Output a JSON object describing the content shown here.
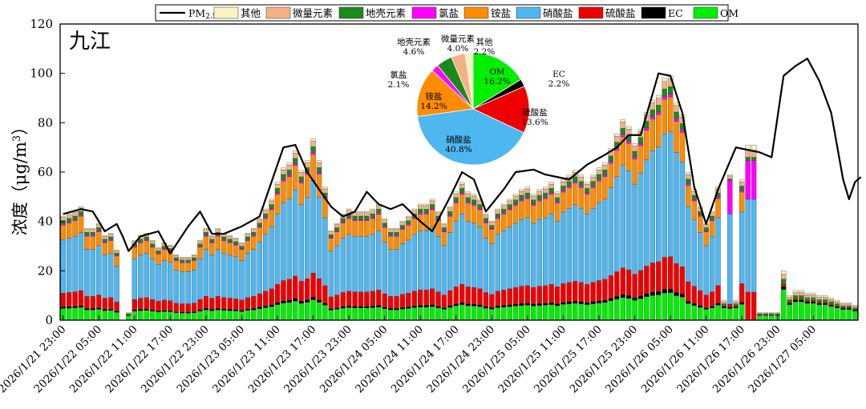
{
  "chart_data": {
    "type": "bar",
    "stacked": true,
    "station_label": "九江",
    "ylabel_prefix": "浓度（μg/m",
    "ylabel_sup": "3",
    "ylabel_suffix": "）",
    "ylim": [
      0,
      120
    ],
    "yticks": [
      0,
      20,
      40,
      60,
      80,
      100,
      120
    ],
    "grid": false,
    "legend_position": "top",
    "x_tick_labels": [
      "2026/1/21 23:00",
      "2026/1/22 05:00",
      "2026/1/22 11:00",
      "2026/1/22 17:00",
      "2026/1/22 23:00",
      "2026/1/23 05:00",
      "2026/1/23 11:00",
      "2026/1/23 17:00",
      "2026/1/23 23:00",
      "2026/1/24 05:00",
      "2026/1/24 11:00",
      "2026/1/24 17:00",
      "2026/1/24 23:00",
      "2026/1/25 05:00",
      "2026/1/25 11:00",
      "2026/1/25 17:00",
      "2026/1/25 23:00",
      "2026/1/26 05:00",
      "2026/1/26 11:00",
      "2026/1/26 17:00",
      "2026/1/26 23:00",
      "2026/1/27 05:00"
    ],
    "n_hours": 134,
    "components": [
      {
        "key": "other",
        "name": "其他",
        "color": "#FBF3C3"
      },
      {
        "key": "crustal",
        "name": "微量元素",
        "color": "#F4B183"
      },
      {
        "key": "earth",
        "name": "地壳元素",
        "color": "#1B8A1B"
      },
      {
        "key": "chloride",
        "name": "氯盐",
        "color": "#FF00FF"
      },
      {
        "key": "ammonium",
        "name": "铵盐",
        "color": "#FF8C00"
      },
      {
        "key": "nitrate",
        "name": "硝酸盐",
        "color": "#4FB7F0"
      },
      {
        "key": "sulfate",
        "name": "硫酸盐",
        "color": "#EE0000"
      },
      {
        "key": "ec",
        "name": "EC",
        "color": "#000000"
      },
      {
        "key": "om",
        "name": "OM",
        "color": "#00EE00"
      }
    ],
    "legend_order": [
      "PM2.5",
      "other",
      "crustal",
      "earth",
      "chloride",
      "ammonium",
      "nitrate",
      "sulfate",
      "ec",
      "om"
    ],
    "pm25_name_main": "PM",
    "pm25_name_sub": "2.5",
    "pm25_color": "#000000",
    "bars": [
      {
        "hour": 0,
        "total": 43
      },
      {
        "hour": 1,
        "total": 44
      },
      {
        "hour": 2,
        "total": 45
      },
      {
        "hour": 3,
        "total": 47
      },
      {
        "hour": 4,
        "total": 38
      },
      {
        "hour": 5,
        "total": 38
      },
      {
        "hour": 6,
        "total": 40
      },
      {
        "hour": 7,
        "total": 35
      },
      {
        "hour": 8,
        "total": 36
      },
      {
        "hour": 9,
        "total": 29
      },
      {
        "hour": 11,
        "total": 3
      },
      {
        "hour": 12,
        "total": 33
      },
      {
        "hour": 13,
        "total": 35
      },
      {
        "hour": 14,
        "total": 36
      },
      {
        "hour": 15,
        "total": 33
      },
      {
        "hour": 16,
        "total": 30
      },
      {
        "hour": 17,
        "total": 32
      },
      {
        "hour": 18,
        "total": 31
      },
      {
        "hour": 19,
        "total": 27
      },
      {
        "hour": 20,
        "total": 26
      },
      {
        "hour": 21,
        "total": 26
      },
      {
        "hour": 22,
        "total": 27
      },
      {
        "hour": 23,
        "total": 33
      },
      {
        "hour": 24,
        "total": 38
      },
      {
        "hour": 25,
        "total": 35
      },
      {
        "hour": 26,
        "total": 38
      },
      {
        "hour": 27,
        "total": 36
      },
      {
        "hour": 28,
        "total": 35
      },
      {
        "hour": 29,
        "total": 34
      },
      {
        "hour": 30,
        "total": 32
      },
      {
        "hour": 31,
        "total": 36
      },
      {
        "hour": 32,
        "total": 38
      },
      {
        "hour": 33,
        "total": 42
      },
      {
        "hour": 34,
        "total": 46
      },
      {
        "hour": 35,
        "total": 50
      },
      {
        "hour": 36,
        "total": 57
      },
      {
        "hour": 37,
        "total": 63
      },
      {
        "hour": 38,
        "total": 65
      },
      {
        "hour": 39,
        "total": 70
      },
      {
        "hour": 40,
        "total": 62
      },
      {
        "hour": 41,
        "total": 66
      },
      {
        "hour": 42,
        "total": 75
      },
      {
        "hour": 43,
        "total": 66
      },
      {
        "hour": 44,
        "total": 55
      },
      {
        "hour": 45,
        "total": 37
      },
      {
        "hour": 46,
        "total": 40
      },
      {
        "hour": 47,
        "total": 44
      },
      {
        "hour": 48,
        "total": 46
      },
      {
        "hour": 49,
        "total": 45
      },
      {
        "hour": 50,
        "total": 45
      },
      {
        "hour": 51,
        "total": 45
      },
      {
        "hour": 52,
        "total": 46
      },
      {
        "hour": 53,
        "total": 48
      },
      {
        "hour": 54,
        "total": 42
      },
      {
        "hour": 55,
        "total": 38
      },
      {
        "hour": 56,
        "total": 38
      },
      {
        "hour": 57,
        "total": 41
      },
      {
        "hour": 58,
        "total": 43
      },
      {
        "hour": 59,
        "total": 46
      },
      {
        "hour": 60,
        "total": 48
      },
      {
        "hour": 61,
        "total": 48
      },
      {
        "hour": 62,
        "total": 50
      },
      {
        "hour": 63,
        "total": 45
      },
      {
        "hour": 64,
        "total": 40
      },
      {
        "hour": 65,
        "total": 47
      },
      {
        "hour": 66,
        "total": 53
      },
      {
        "hour": 67,
        "total": 57
      },
      {
        "hour": 68,
        "total": 53
      },
      {
        "hour": 69,
        "total": 52
      },
      {
        "hour": 70,
        "total": 50
      },
      {
        "hour": 71,
        "total": 44
      },
      {
        "hour": 72,
        "total": 41
      },
      {
        "hour": 73,
        "total": 46
      },
      {
        "hour": 74,
        "total": 48
      },
      {
        "hour": 75,
        "total": 50
      },
      {
        "hour": 76,
        "total": 52
      },
      {
        "hour": 77,
        "total": 54
      },
      {
        "hour": 78,
        "total": 55
      },
      {
        "hour": 79,
        "total": 52
      },
      {
        "hour": 80,
        "total": 54
      },
      {
        "hour": 81,
        "total": 55
      },
      {
        "hour": 82,
        "total": 57
      },
      {
        "hour": 83,
        "total": 53
      },
      {
        "hour": 84,
        "total": 58
      },
      {
        "hour": 85,
        "total": 60
      },
      {
        "hour": 86,
        "total": 62
      },
      {
        "hour": 87,
        "total": 60
      },
      {
        "hour": 88,
        "total": 57
      },
      {
        "hour": 89,
        "total": 60
      },
      {
        "hour": 90,
        "total": 63
      },
      {
        "hour": 91,
        "total": 65
      },
      {
        "hour": 92,
        "total": 71
      },
      {
        "hour": 93,
        "total": 77
      },
      {
        "hour": 94,
        "total": 83
      },
      {
        "hour": 95,
        "total": 80
      },
      {
        "hour": 96,
        "total": 73
      },
      {
        "hour": 97,
        "total": 79
      },
      {
        "hour": 98,
        "total": 86
      },
      {
        "hour": 99,
        "total": 91
      },
      {
        "hour": 100,
        "total": 93
      },
      {
        "hour": 101,
        "total": 100
      },
      {
        "hour": 102,
        "total": 101
      },
      {
        "hour": 103,
        "total": 90
      },
      {
        "hour": 104,
        "total": 85
      },
      {
        "hour": 105,
        "total": 61
      },
      {
        "hour": 106,
        "total": 54
      },
      {
        "hour": 107,
        "total": 47
      },
      {
        "hour": 108,
        "total": 40
      },
      {
        "hour": 109,
        "total": 45
      },
      {
        "hour": 110,
        "total": 55
      },
      {
        "hour": 111,
        "total": 8
      },
      {
        "hour": 112,
        "total": 59
      },
      {
        "hour": 113,
        "total": 8
      },
      {
        "hour": 114,
        "total": 58
      },
      {
        "hour": 115,
        "total": 71
      },
      {
        "hour": 116,
        "total": 71
      },
      {
        "hour": 117,
        "total": 3
      },
      {
        "hour": 118,
        "total": 3
      },
      {
        "hour": 119,
        "total": 3
      },
      {
        "hour": 120,
        "total": 3
      },
      {
        "hour": 121,
        "total": 20
      },
      {
        "hour": 122,
        "total": 10
      },
      {
        "hour": 123,
        "total": 12
      },
      {
        "hour": 124,
        "total": 12
      },
      {
        "hour": 125,
        "total": 11
      },
      {
        "hour": 126,
        "total": 11
      },
      {
        "hour": 127,
        "total": 10
      },
      {
        "hour": 128,
        "total": 10
      },
      {
        "hour": 129,
        "total": 9
      },
      {
        "hour": 130,
        "total": 8
      },
      {
        "hour": 131,
        "total": 7
      },
      {
        "hour": 132,
        "total": 7
      },
      {
        "hour": 133,
        "total": 6
      }
    ],
    "pm25_line": [
      {
        "hour": 0,
        "value": 43
      },
      {
        "hour": 3,
        "value": 45
      },
      {
        "hour": 5,
        "value": 44
      },
      {
        "hour": 7,
        "value": 36
      },
      {
        "hour": 9,
        "value": 39
      },
      {
        "hour": 10,
        "value": 34
      },
      {
        "hour": 11,
        "value": 28
      },
      {
        "hour": 13,
        "value": 34
      },
      {
        "hour": 16,
        "value": 36
      },
      {
        "hour": 18,
        "value": 27
      },
      {
        "hour": 21,
        "value": 38
      },
      {
        "hour": 23,
        "value": 44
      },
      {
        "hour": 25,
        "value": 35
      },
      {
        "hour": 27,
        "value": 35
      },
      {
        "hour": 30,
        "value": 38
      },
      {
        "hour": 33,
        "value": 42
      },
      {
        "hour": 37,
        "value": 70
      },
      {
        "hour": 39,
        "value": 71
      },
      {
        "hour": 41,
        "value": 60
      },
      {
        "hour": 43,
        "value": 53
      },
      {
        "hour": 45,
        "value": 46
      },
      {
        "hour": 47,
        "value": 42
      },
      {
        "hour": 49,
        "value": 44
      },
      {
        "hour": 51,
        "value": 52
      },
      {
        "hour": 53,
        "value": 47
      },
      {
        "hour": 55,
        "value": 45
      },
      {
        "hour": 57,
        "value": 47
      },
      {
        "hour": 60,
        "value": 40
      },
      {
        "hour": 62,
        "value": 36
      },
      {
        "hour": 65,
        "value": 50
      },
      {
        "hour": 67,
        "value": 60
      },
      {
        "hour": 69,
        "value": 57
      },
      {
        "hour": 71,
        "value": 44
      },
      {
        "hour": 74,
        "value": 53
      },
      {
        "hour": 76,
        "value": 60
      },
      {
        "hour": 79,
        "value": 61
      },
      {
        "hour": 81,
        "value": 59
      },
      {
        "hour": 85,
        "value": 57
      },
      {
        "hour": 88,
        "value": 63
      },
      {
        "hour": 91,
        "value": 67
      },
      {
        "hour": 93,
        "value": 70
      },
      {
        "hour": 95,
        "value": 75
      },
      {
        "hour": 97,
        "value": 75
      },
      {
        "hour": 100,
        "value": 100
      },
      {
        "hour": 102,
        "value": 99
      },
      {
        "hour": 104,
        "value": 84
      },
      {
        "hour": 106,
        "value": 54
      },
      {
        "hour": 108,
        "value": 39
      },
      {
        "hour": 110,
        "value": 53
      },
      {
        "hour": 113,
        "value": 70
      },
      {
        "hour": 115,
        "value": 69
      },
      {
        "hour": 117,
        "value": 68
      },
      {
        "hour": 119,
        "value": 66
      },
      {
        "hour": 121,
        "value": 99
      },
      {
        "hour": 123,
        "value": 103
      },
      {
        "hour": 125,
        "value": 106
      },
      {
        "hour": 127,
        "value": 97
      },
      {
        "hour": 129,
        "value": 84
      },
      {
        "hour": 131,
        "value": 57
      },
      {
        "hour": 132,
        "value": 49
      },
      {
        "hour": 133,
        "value": 56
      },
      {
        "hour": 134,
        "value": 58
      }
    ],
    "pie": [
      {
        "key": "om",
        "label": "OM",
        "percent": 16.2
      },
      {
        "key": "ec",
        "label": "EC",
        "percent": 2.2
      },
      {
        "key": "sulfate",
        "label": "硫酸盐",
        "percent": 13.6
      },
      {
        "key": "nitrate",
        "label": "硝酸盐",
        "percent": 40.8
      },
      {
        "key": "ammonium",
        "label": "铵盐",
        "percent": 14.2
      },
      {
        "key": "chloride",
        "label": "氯盐",
        "percent": 2.1
      },
      {
        "key": "earth",
        "label": "地壳元素",
        "percent": 4.6
      },
      {
        "key": "crustal",
        "label": "微量元素",
        "percent": 4.0
      },
      {
        "key": "other",
        "label": "其他",
        "percent": 2.2
      }
    ]
  }
}
